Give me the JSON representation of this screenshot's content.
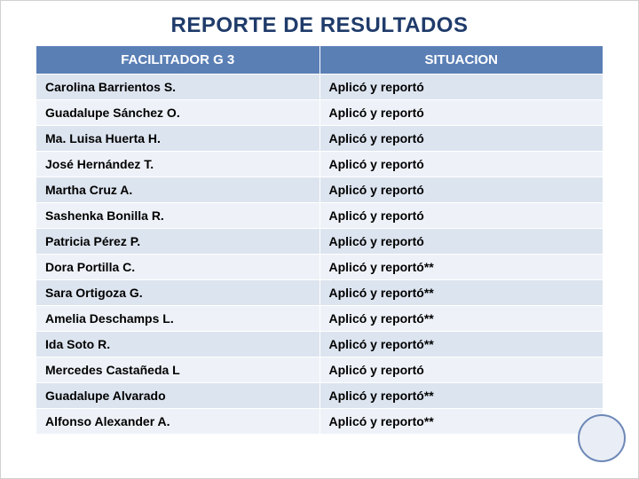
{
  "title": "REPORTE DE RESULTADOS",
  "title_fontsize": 24,
  "title_color": "#1f3b6a",
  "table": {
    "header_bg": "#5a7fb5",
    "header_color": "#ffffff",
    "header_fontsize": 15,
    "row_fontsize": 14,
    "row_colors": {
      "odd": "#dce4ef",
      "even": "#eef2f8"
    },
    "columns": [
      "FACILITADOR G 3",
      "SITUACION"
    ],
    "rows": [
      [
        "Carolina Barrientos S.",
        "Aplicó y reportó"
      ],
      [
        "Guadalupe Sánchez O.",
        "Aplicó y reportó"
      ],
      [
        "Ma. Luisa Huerta H.",
        "Aplicó y reportó"
      ],
      [
        "José  Hernández T.",
        "Aplicó y reportó"
      ],
      [
        "Martha Cruz A.",
        "Aplicó y reportó"
      ],
      [
        "Sashenka Bonilla R.",
        "Aplicó y reportó"
      ],
      [
        "Patricia Pérez P.",
        "Aplicó y reportó"
      ],
      [
        "Dora Portilla C.",
        "Aplicó y reportó**"
      ],
      [
        "Sara Ortigoza G.",
        "Aplicó y reportó**"
      ],
      [
        "Amelia Deschamps L.",
        "Aplicó y reportó**"
      ],
      [
        "Ida Soto R.",
        "Aplicó y reportó**"
      ],
      [
        "Mercedes Castañeda L",
        "Aplicó y reportó"
      ],
      [
        "Guadalupe Alvarado",
        "Aplicó y reportó**"
      ],
      [
        "Alfonso Alexander A.",
        "Aplicó y reporto**"
      ]
    ]
  },
  "circle": {
    "fill": "#e9edf5",
    "border": "#6e88b8"
  }
}
